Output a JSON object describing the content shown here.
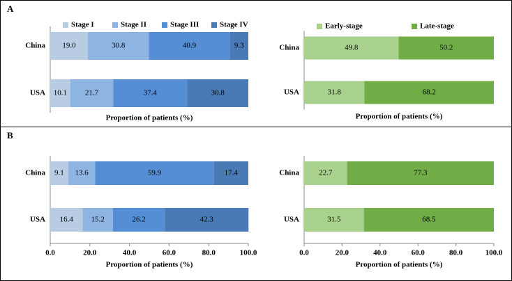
{
  "panel_labels": [
    "A",
    "B"
  ],
  "chart_data": [
    {
      "type": "stacked-barh",
      "categories": [
        "China",
        "USA"
      ],
      "xlabel": "Proportion of patients (%)",
      "xlim": [
        0,
        100
      ],
      "series": [
        {
          "name": "Stage I",
          "color": "#b8cce4",
          "values": [
            19.0,
            10.1
          ],
          "value_labels": [
            "19.0",
            "10.1"
          ]
        },
        {
          "name": "Stage II",
          "color": "#8eb4e3",
          "values": [
            30.8,
            21.7
          ],
          "value_labels": [
            "30.8",
            "21.7"
          ]
        },
        {
          "name": "Stage III",
          "color": "#558ed5",
          "values": [
            40.9,
            37.4
          ],
          "value_labels": [
            "40.9",
            "37.4"
          ]
        },
        {
          "name": "Stage IV",
          "color": "#4a7ab5",
          "values": [
            9.3,
            30.8
          ],
          "value_labels": [
            "9.3",
            "30.8"
          ]
        }
      ]
    },
    {
      "type": "stacked-barh",
      "categories": [
        "China",
        "USA"
      ],
      "xlabel": "Proportion of patients (%)",
      "xlim": [
        0,
        100
      ],
      "series": [
        {
          "name": "Early-stage",
          "color": "#a9d18e",
          "values": [
            49.8,
            31.8
          ],
          "value_labels": [
            "49.8",
            "31.8"
          ]
        },
        {
          "name": "Late-stage",
          "color": "#70ad47",
          "values": [
            50.2,
            68.2
          ],
          "value_labels": [
            "50.2",
            "68.2"
          ]
        }
      ]
    },
    {
      "type": "stacked-barh",
      "categories": [
        "China",
        "USA"
      ],
      "xlabel": "Proportion of patients (%)",
      "xlim": [
        0,
        100
      ],
      "xticks": [
        {
          "value": 0,
          "label": "0.0"
        },
        {
          "value": 20,
          "label": "20.0"
        },
        {
          "value": 40,
          "label": "40.0"
        },
        {
          "value": 60,
          "label": "60.0"
        },
        {
          "value": 80,
          "label": "80.0"
        },
        {
          "value": 100,
          "label": "100.0"
        }
      ],
      "series": [
        {
          "color": "#b8cce4",
          "values": [
            9.1,
            16.4
          ],
          "value_labels": [
            "9.1",
            "16.4"
          ]
        },
        {
          "color": "#8eb4e3",
          "values": [
            13.6,
            15.2
          ],
          "value_labels": [
            "13.6",
            "15.2"
          ]
        },
        {
          "color": "#558ed5",
          "values": [
            59.9,
            26.2
          ],
          "value_labels": [
            "59.9",
            "26.2"
          ]
        },
        {
          "color": "#4a7ab5",
          "values": [
            17.4,
            42.3
          ],
          "value_labels": [
            "17.4",
            "42.3"
          ]
        }
      ]
    },
    {
      "type": "stacked-barh",
      "categories": [
        "China",
        "USA"
      ],
      "xlabel": "Proportion of patients (%)",
      "xlim": [
        0,
        100
      ],
      "xticks": [
        {
          "value": 0,
          "label": "0.0"
        },
        {
          "value": 20,
          "label": "20.0"
        },
        {
          "value": 40,
          "label": "40.0"
        },
        {
          "value": 60,
          "label": "60.0"
        },
        {
          "value": 80,
          "label": "80.0"
        },
        {
          "value": 100,
          "label": "100.0"
        }
      ],
      "series": [
        {
          "color": "#a9d18e",
          "values": [
            22.7,
            31.5
          ],
          "value_labels": [
            "22.7",
            "31.5"
          ]
        },
        {
          "color": "#70ad47",
          "values": [
            77.3,
            68.5
          ],
          "value_labels": [
            "77.3",
            "68.5"
          ]
        }
      ]
    }
  ]
}
